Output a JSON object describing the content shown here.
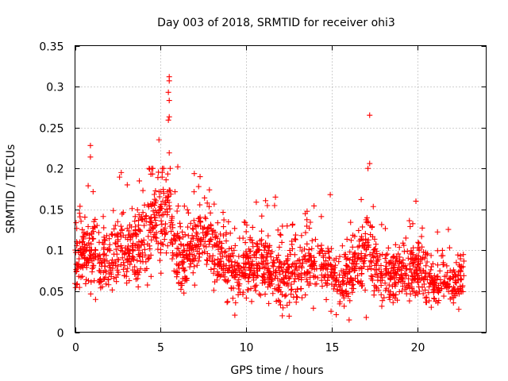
{
  "chart_data": {
    "type": "scatter",
    "title": "Day 003 of 2018, SRMTID for receiver ohi3",
    "xlabel": "GPS time / hours",
    "ylabel": "SRMTID / TECUs",
    "xlim": [
      0,
      24
    ],
    "ylim": [
      0,
      0.35
    ],
    "x_ticks": [
      0,
      5,
      10,
      15,
      20
    ],
    "x_tick_labels": [
      "0",
      "5",
      "10",
      "15",
      "20"
    ],
    "y_ticks": [
      0,
      0.05,
      0.1,
      0.15,
      0.2,
      0.25,
      0.3,
      0.35
    ],
    "y_tick_labels": [
      "0",
      "0.05",
      "0.1",
      "0.15",
      "0.2",
      "0.25",
      "0.3",
      "0.35"
    ],
    "grid": true,
    "marker": "+",
    "series_color": "#ff0000",
    "notable_points": [
      {
        "x": 0.9,
        "y": 0.228
      },
      {
        "x": 0.9,
        "y": 0.214
      },
      {
        "x": 4.9,
        "y": 0.235
      },
      {
        "x": 5.5,
        "y": 0.312
      },
      {
        "x": 5.5,
        "y": 0.307
      },
      {
        "x": 5.45,
        "y": 0.293
      },
      {
        "x": 5.5,
        "y": 0.283
      },
      {
        "x": 5.5,
        "y": 0.263
      },
      {
        "x": 5.45,
        "y": 0.259
      },
      {
        "x": 5.5,
        "y": 0.219
      },
      {
        "x": 17.2,
        "y": 0.265
      },
      {
        "x": 17.2,
        "y": 0.206
      },
      {
        "x": 17.1,
        "y": 0.2
      },
      {
        "x": 11.7,
        "y": 0.165
      },
      {
        "x": 14.9,
        "y": 0.168
      },
      {
        "x": 6.0,
        "y": 0.202
      },
      {
        "x": 2.7,
        "y": 0.195
      },
      {
        "x": 7.3,
        "y": 0.19
      },
      {
        "x": 19.9,
        "y": 0.16
      },
      {
        "x": 1.2,
        "y": 0.04
      },
      {
        "x": 12.1,
        "y": 0.02
      },
      {
        "x": 16.0,
        "y": 0.015
      },
      {
        "x": 17.0,
        "y": 0.018
      },
      {
        "x": 22.4,
        "y": 0.028
      }
    ],
    "density_profile": {
      "description": "Scattered point cloud across 0-22.7 h; per-segment centre and spread in TECU",
      "x": [
        0,
        0.5,
        1,
        1.5,
        2,
        2.5,
        3,
        3.5,
        4,
        4.5,
        5,
        5.5,
        6,
        6.5,
        7,
        7.5,
        8,
        8.5,
        9,
        9.5,
        10,
        10.5,
        11,
        11.5,
        12,
        12.5,
        13,
        13.5,
        14,
        14.5,
        15,
        15.5,
        16,
        16.5,
        17,
        17.5,
        18,
        18.5,
        19,
        19.5,
        20,
        20.5,
        21,
        21.5,
        22,
        22.7
      ],
      "center": [
        0.085,
        0.095,
        0.1,
        0.09,
        0.085,
        0.1,
        0.1,
        0.11,
        0.12,
        0.125,
        0.14,
        0.15,
        0.095,
        0.085,
        0.11,
        0.12,
        0.105,
        0.095,
        0.075,
        0.07,
        0.08,
        0.085,
        0.08,
        0.075,
        0.07,
        0.065,
        0.075,
        0.08,
        0.085,
        0.08,
        0.075,
        0.06,
        0.065,
        0.09,
        0.105,
        0.08,
        0.07,
        0.065,
        0.07,
        0.075,
        0.08,
        0.06,
        0.055,
        0.065,
        0.055,
        0.07
      ],
      "spread": [
        0.025,
        0.03,
        0.035,
        0.03,
        0.03,
        0.035,
        0.035,
        0.04,
        0.04,
        0.04,
        0.045,
        0.045,
        0.035,
        0.03,
        0.035,
        0.035,
        0.03,
        0.03,
        0.03,
        0.025,
        0.03,
        0.03,
        0.03,
        0.03,
        0.03,
        0.03,
        0.03,
        0.03,
        0.03,
        0.03,
        0.03,
        0.025,
        0.03,
        0.035,
        0.04,
        0.03,
        0.025,
        0.025,
        0.025,
        0.03,
        0.03,
        0.025,
        0.02,
        0.025,
        0.02,
        0.02
      ]
    },
    "point_count": 1900
  }
}
